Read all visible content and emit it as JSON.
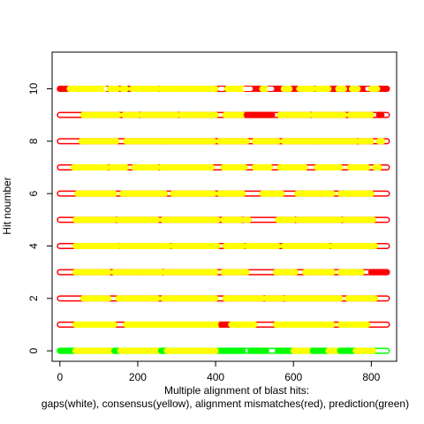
{
  "chart_data": {
    "type": "scatter",
    "title": "",
    "xlabel_line1": "Multiple alignment of blast hits:",
    "xlabel_line2": "gaps(white), consensus(yellow), alignment mismatches(red), prediction(green)",
    "ylabel": "Hit noumber",
    "xlim": [
      -20,
      865
    ],
    "ylim": [
      -0.4,
      11.4
    ],
    "x_ticks": [
      0,
      200,
      400,
      600,
      800
    ],
    "y_ticks": [
      0,
      2,
      4,
      6,
      8,
      10
    ],
    "grid": false,
    "legend": "none",
    "marker": "open-circle",
    "colors": {
      "gap": "#ffffff",
      "consensus": "#ffff00",
      "mismatch": "#ff0000",
      "prediction": "#00ff00",
      "outline": "#ff0000",
      "prediction_outline": "#00ff00"
    },
    "alignment_length": 840,
    "rows": [
      {
        "hit": 10,
        "segments": [
          {
            "type": "mismatch",
            "from": 0,
            "to": 840
          },
          {
            "type": "consensus",
            "from": 25,
            "to": 115
          },
          {
            "type": "gap",
            "from": 118,
            "to": 126
          },
          {
            "type": "consensus",
            "from": 128,
            "to": 148
          },
          {
            "type": "consensus",
            "from": 160,
            "to": 170
          },
          {
            "type": "consensus",
            "from": 185,
            "to": 250
          },
          {
            "type": "consensus",
            "from": 258,
            "to": 300
          },
          {
            "type": "consensus",
            "from": 305,
            "to": 335
          },
          {
            "type": "consensus",
            "from": 338,
            "to": 400
          },
          {
            "type": "gap",
            "from": 412,
            "to": 418
          },
          {
            "type": "consensus",
            "from": 430,
            "to": 470
          },
          {
            "type": "gap",
            "from": 475,
            "to": 490
          },
          {
            "type": "consensus",
            "from": 520,
            "to": 530
          },
          {
            "type": "gap",
            "from": 537,
            "to": 545
          },
          {
            "type": "consensus",
            "from": 575,
            "to": 590
          },
          {
            "type": "consensus",
            "from": 615,
            "to": 650
          },
          {
            "type": "consensus",
            "from": 660,
            "to": 690
          },
          {
            "type": "consensus",
            "from": 715,
            "to": 730
          },
          {
            "type": "consensus",
            "from": 750,
            "to": 765
          },
          {
            "type": "gap",
            "from": 790,
            "to": 800
          },
          {
            "type": "consensus",
            "from": 800,
            "to": 815
          }
        ]
      },
      {
        "hit": 9,
        "segments": [
          {
            "type": "consensus",
            "from": 60,
            "to": 150
          },
          {
            "type": "consensus",
            "from": 165,
            "to": 200
          },
          {
            "type": "consensus",
            "from": 210,
            "to": 300
          },
          {
            "type": "consensus",
            "from": 310,
            "to": 400
          },
          {
            "type": "consensus",
            "from": 425,
            "to": 470
          },
          {
            "type": "mismatch",
            "from": 480,
            "to": 545
          },
          {
            "type": "consensus",
            "from": 565,
            "to": 640
          },
          {
            "type": "consensus",
            "from": 650,
            "to": 730
          },
          {
            "type": "consensus",
            "from": 745,
            "to": 800
          },
          {
            "type": "mismatch",
            "from": 820,
            "to": 826
          }
        ]
      },
      {
        "hit": 8,
        "segments": [
          {
            "type": "consensus",
            "from": 55,
            "to": 145
          },
          {
            "type": "consensus",
            "from": 170,
            "to": 260
          },
          {
            "type": "consensus",
            "from": 265,
            "to": 395
          },
          {
            "type": "consensus",
            "from": 410,
            "to": 480
          },
          {
            "type": "consensus",
            "from": 500,
            "to": 560
          },
          {
            "type": "consensus",
            "from": 575,
            "to": 650
          },
          {
            "type": "consensus",
            "from": 655,
            "to": 760
          },
          {
            "type": "consensus",
            "from": 770,
            "to": 800
          },
          {
            "type": "consensus",
            "from": 820,
            "to": 828
          }
        ]
      },
      {
        "hit": 7,
        "segments": [
          {
            "type": "consensus",
            "from": 35,
            "to": 120
          },
          {
            "type": "consensus",
            "from": 130,
            "to": 170
          },
          {
            "type": "consensus",
            "from": 190,
            "to": 250
          },
          {
            "type": "consensus",
            "from": 260,
            "to": 390
          },
          {
            "type": "consensus",
            "from": 420,
            "to": 475
          },
          {
            "type": "consensus",
            "from": 500,
            "to": 540
          },
          {
            "type": "consensus",
            "from": 565,
            "to": 630
          },
          {
            "type": "consensus",
            "from": 660,
            "to": 720
          },
          {
            "type": "consensus",
            "from": 745,
            "to": 790
          },
          {
            "type": "consensus",
            "from": 810,
            "to": 820
          }
        ]
      },
      {
        "hit": 6,
        "segments": [
          {
            "type": "consensus",
            "from": 45,
            "to": 140
          },
          {
            "type": "consensus",
            "from": 160,
            "to": 270
          },
          {
            "type": "consensus",
            "from": 290,
            "to": 395
          },
          {
            "type": "consensus",
            "from": 410,
            "to": 470
          },
          {
            "type": "consensus",
            "from": 520,
            "to": 570
          },
          {
            "type": "consensus",
            "from": 610,
            "to": 700
          },
          {
            "type": "consensus",
            "from": 720,
            "to": 800
          }
        ]
      },
      {
        "hit": 5,
        "segments": [
          {
            "type": "consensus",
            "from": 40,
            "to": 140
          },
          {
            "type": "consensus",
            "from": 150,
            "to": 250
          },
          {
            "type": "consensus",
            "from": 265,
            "to": 405
          },
          {
            "type": "consensus",
            "from": 420,
            "to": 465
          },
          {
            "type": "consensus",
            "from": 475,
            "to": 485
          },
          {
            "type": "consensus",
            "from": 560,
            "to": 600
          },
          {
            "type": "consensus",
            "from": 610,
            "to": 720
          },
          {
            "type": "consensus",
            "from": 730,
            "to": 805
          }
        ]
      },
      {
        "hit": 4,
        "segments": [
          {
            "type": "consensus",
            "from": 40,
            "to": 148
          },
          {
            "type": "consensus",
            "from": 155,
            "to": 280
          },
          {
            "type": "consensus",
            "from": 290,
            "to": 405
          },
          {
            "type": "consensus",
            "from": 425,
            "to": 470
          },
          {
            "type": "consensus",
            "from": 480,
            "to": 560
          },
          {
            "type": "consensus",
            "from": 575,
            "to": 690
          },
          {
            "type": "consensus",
            "from": 700,
            "to": 810
          }
        ]
      },
      {
        "hit": 3,
        "segments": [
          {
            "type": "consensus",
            "from": 40,
            "to": 125
          },
          {
            "type": "consensus",
            "from": 140,
            "to": 195
          },
          {
            "type": "consensus",
            "from": 200,
            "to": 260
          },
          {
            "type": "consensus",
            "from": 270,
            "to": 400
          },
          {
            "type": "consensus",
            "from": 420,
            "to": 480
          },
          {
            "type": "consensus",
            "from": 555,
            "to": 605
          },
          {
            "type": "consensus",
            "from": 630,
            "to": 700
          },
          {
            "type": "consensus",
            "from": 720,
            "to": 775
          },
          {
            "type": "mismatch",
            "from": 800,
            "to": 840
          }
        ]
      },
      {
        "hit": 2,
        "segments": [
          {
            "type": "consensus",
            "from": 60,
            "to": 125
          },
          {
            "type": "consensus",
            "from": 150,
            "to": 250
          },
          {
            "type": "consensus",
            "from": 265,
            "to": 400
          },
          {
            "type": "consensus",
            "from": 425,
            "to": 520
          },
          {
            "type": "consensus",
            "from": 530,
            "to": 570
          },
          {
            "type": "consensus",
            "from": 580,
            "to": 720
          },
          {
            "type": "consensus",
            "from": 740,
            "to": 810
          }
        ]
      },
      {
        "hit": 1,
        "segments": [
          {
            "type": "consensus",
            "from": 40,
            "to": 140
          },
          {
            "type": "consensus",
            "from": 170,
            "to": 405
          },
          {
            "type": "mismatch",
            "from": 415,
            "to": 440
          },
          {
            "type": "consensus",
            "from": 440,
            "to": 500
          },
          {
            "type": "consensus",
            "from": 555,
            "to": 700
          },
          {
            "type": "consensus",
            "from": 720,
            "to": 790
          }
        ]
      },
      {
        "hit": 0,
        "segments": [
          {
            "type": "prediction",
            "from": 0,
            "to": 40
          },
          {
            "type": "consensus",
            "from": 40,
            "to": 140
          },
          {
            "type": "prediction",
            "from": 140,
            "to": 150
          },
          {
            "type": "consensus",
            "from": 155,
            "to": 260
          },
          {
            "type": "prediction",
            "from": 260,
            "to": 275
          },
          {
            "type": "consensus",
            "from": 275,
            "to": 400
          },
          {
            "type": "prediction",
            "from": 415,
            "to": 470
          },
          {
            "type": "prediction",
            "from": 490,
            "to": 530
          },
          {
            "type": "prediction",
            "from": 560,
            "to": 600
          },
          {
            "type": "consensus",
            "from": 600,
            "to": 640
          },
          {
            "type": "prediction",
            "from": 650,
            "to": 690
          },
          {
            "type": "consensus",
            "from": 690,
            "to": 720
          },
          {
            "type": "prediction",
            "from": 720,
            "to": 760
          },
          {
            "type": "consensus",
            "from": 760,
            "to": 805
          }
        ]
      }
    ]
  }
}
